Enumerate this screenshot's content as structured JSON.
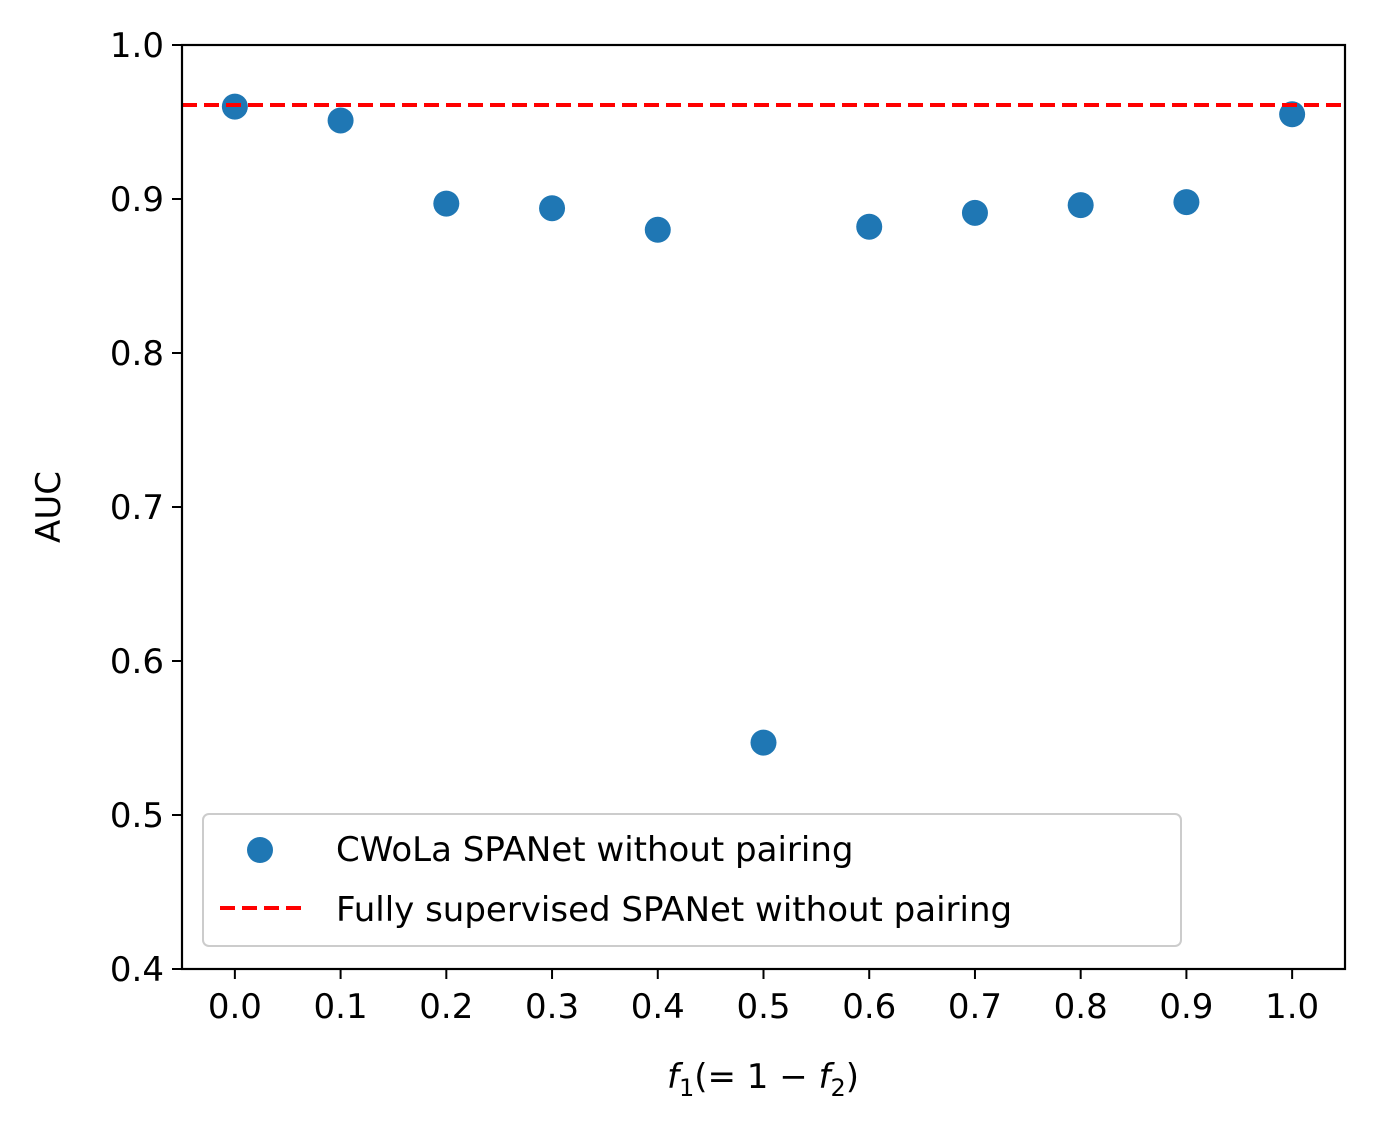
{
  "chart_data": {
    "type": "scatter",
    "title": "",
    "xlabel": "f1(= 1 − f2)",
    "xlabel_parts": {
      "f": "f",
      "sub1": "1",
      "mid": "(= 1 − ",
      "sub2": "2",
      "end": ")"
    },
    "ylabel": "AUC",
    "xlim": [
      -0.05,
      1.05
    ],
    "ylim": [
      0.4,
      1.0
    ],
    "x_ticks": [
      0.0,
      0.1,
      0.2,
      0.3,
      0.4,
      0.5,
      0.6,
      0.7,
      0.8,
      0.9,
      1.0
    ],
    "x_tick_labels": [
      "0.0",
      "0.1",
      "0.2",
      "0.3",
      "0.4",
      "0.5",
      "0.6",
      "0.7",
      "0.8",
      "0.9",
      "1.0"
    ],
    "y_ticks": [
      0.4,
      0.5,
      0.6,
      0.7,
      0.8,
      0.9,
      1.0
    ],
    "y_tick_labels": [
      "0.4",
      "0.5",
      "0.6",
      "0.7",
      "0.8",
      "0.9",
      "1.0"
    ],
    "grid": false,
    "legend_position": "lower-left",
    "series": [
      {
        "name": "CWoLa SPANet without pairing",
        "kind": "scatter",
        "color": "#1f77b4",
        "x": [
          0.0,
          0.1,
          0.2,
          0.3,
          0.4,
          0.5,
          0.6,
          0.7,
          0.8,
          0.9,
          1.0
        ],
        "y": [
          0.96,
          0.951,
          0.897,
          0.894,
          0.88,
          0.547,
          0.882,
          0.891,
          0.896,
          0.898,
          0.955
        ]
      },
      {
        "name": "Fully supervised SPANet without pairing",
        "kind": "hline",
        "color": "#ff0000",
        "style": "dashed",
        "y": 0.961
      }
    ]
  }
}
